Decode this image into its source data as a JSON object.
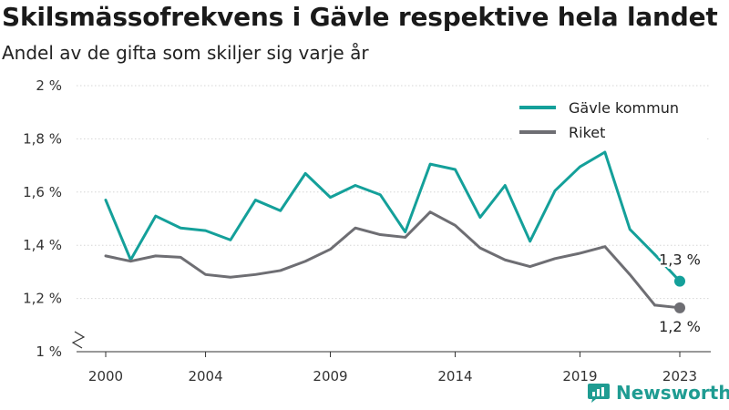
{
  "chart_data": {
    "type": "line",
    "title": "Skilsmässofrekvens i Gävle respektive hela landet",
    "subtitle": "Andel av de gifta som skiljer sig varje år",
    "x": [
      2000,
      2001,
      2002,
      2003,
      2004,
      2005,
      2006,
      2007,
      2008,
      2009,
      2010,
      2011,
      2012,
      2013,
      2014,
      2015,
      2016,
      2017,
      2018,
      2019,
      2020,
      2021,
      2022,
      2023
    ],
    "x_ticks": [
      2000,
      2004,
      2009,
      2014,
      2019,
      2023
    ],
    "x_tick_labels": [
      "2000",
      "2004",
      "2009",
      "2014",
      "2019",
      "2023"
    ],
    "ylim": [
      1.0,
      2.0
    ],
    "y_ticks": [
      1.0,
      1.2,
      1.4,
      1.6,
      1.8,
      2.0
    ],
    "y_tick_labels": [
      "1 %",
      "1,2 %",
      "1,4 %",
      "1,6 %",
      "1,8 %",
      "2 %"
    ],
    "y_axis_break": true,
    "grid": "horizontal",
    "legend_position": "top-right",
    "series": [
      {
        "name": "Gävle kommun",
        "color": "#14a09a",
        "values": [
          1.57,
          1.345,
          1.51,
          1.465,
          1.455,
          1.42,
          1.57,
          1.53,
          1.67,
          1.58,
          1.625,
          1.59,
          1.45,
          1.705,
          1.685,
          1.505,
          1.625,
          1.415,
          1.605,
          1.695,
          1.75,
          1.46,
          1.365,
          1.265
        ],
        "end_label": "1,3 %"
      },
      {
        "name": "Riket",
        "color": "#6e6e73",
        "values": [
          1.36,
          1.34,
          1.36,
          1.355,
          1.29,
          1.28,
          1.29,
          1.305,
          1.34,
          1.385,
          1.465,
          1.44,
          1.43,
          1.525,
          1.475,
          1.39,
          1.345,
          1.32,
          1.35,
          1.37,
          1.395,
          1.29,
          1.175,
          1.165
        ],
        "end_label": "1,2 %"
      }
    ]
  },
  "branding": {
    "name": "Newsworthy",
    "icon": "newsworthy-logo-icon"
  }
}
